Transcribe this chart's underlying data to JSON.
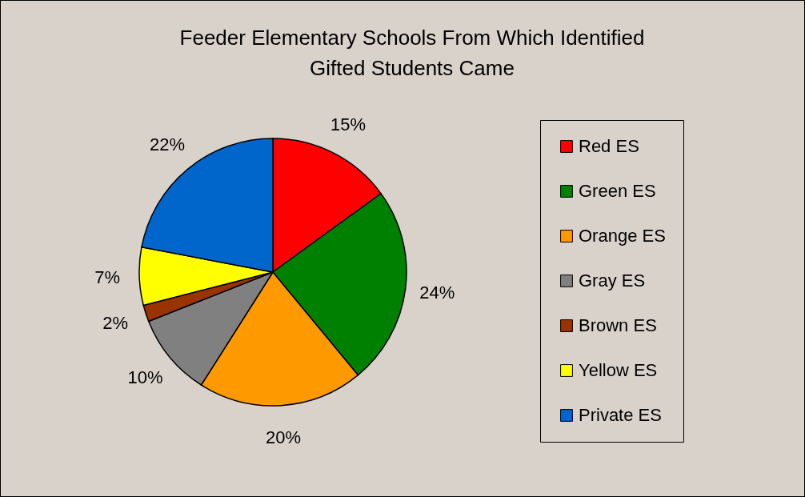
{
  "chart_data": {
    "type": "pie",
    "title": "Feeder Elementary Schools From Which  Identified Gifted Students Came",
    "categories": [
      "Red ES",
      "Green ES",
      "Orange ES",
      "Gray ES",
      "Brown ES",
      "Yellow ES",
      "Private ES"
    ],
    "values": [
      15,
      24,
      20,
      10,
      2,
      7,
      22
    ],
    "colors": [
      "#ff0000",
      "#008000",
      "#ff9900",
      "#808080",
      "#993300",
      "#ffff00",
      "#0066cc"
    ],
    "value_labels": [
      "15%",
      "24%",
      "20%",
      "10%",
      "2%",
      "7%",
      "22%"
    ],
    "legend": "right"
  }
}
